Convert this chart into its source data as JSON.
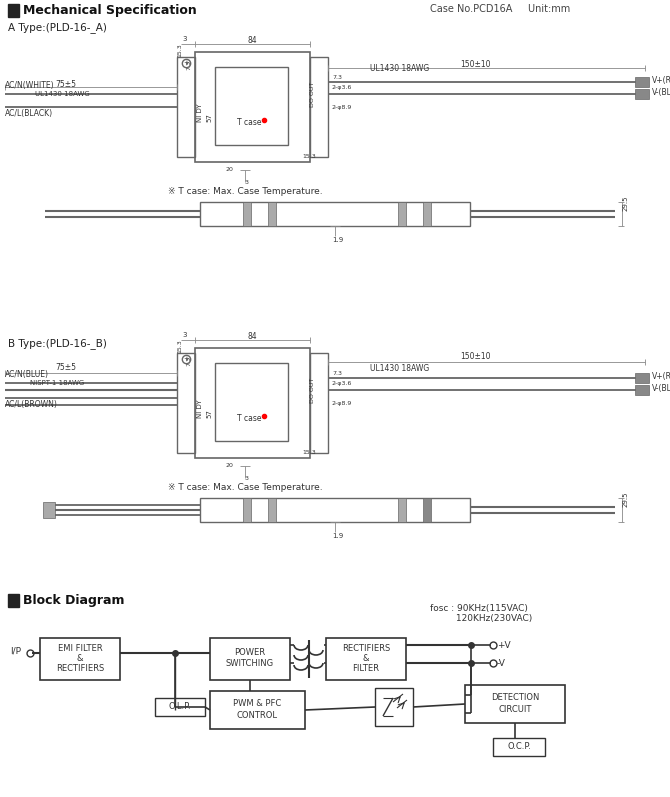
{
  "bg_color": "#ffffff",
  "lc": "#666666",
  "dc": "#333333",
  "section1_title": "Mechanical Specification",
  "section2_title": "Block Diagram",
  "case_no": "Case No.PCD16A     Unit:mm",
  "type_a_label": "A Type:(PLD-16-_A)",
  "type_b_label": "B Type:(PLD-16-_B)",
  "note": "※ T case: Max. Case Temperature.",
  "fosc_note": "fosc : 90KHz(115VAC)\n         120KHz(230VAC)"
}
